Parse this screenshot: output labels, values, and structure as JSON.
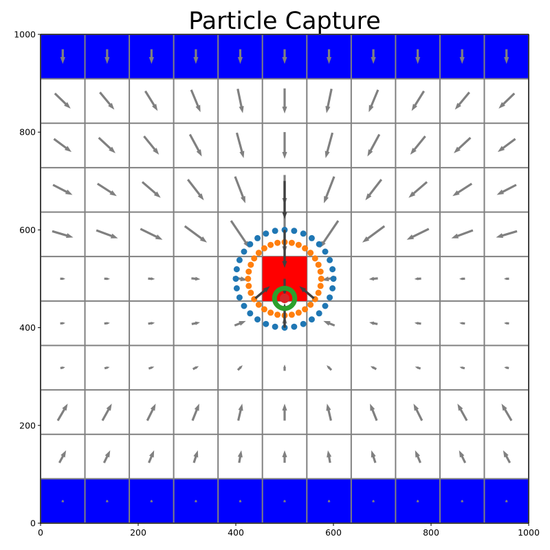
{
  "chart_data": {
    "type": "quiver",
    "title": "Particle Capture",
    "xlabel": "",
    "ylabel": "",
    "xlim": [
      0,
      1000
    ],
    "ylim": [
      0,
      1000
    ],
    "x_ticks": [
      0,
      200,
      400,
      600,
      800,
      1000
    ],
    "y_ticks": [
      0,
      200,
      400,
      600,
      800,
      1000
    ],
    "grid": {
      "x_edges": [
        0,
        90.9,
        181.8,
        272.7,
        363.6,
        454.5,
        545.5,
        636.4,
        727.3,
        818.2,
        909.1,
        1000
      ],
      "y_edges": [
        0,
        90.9,
        181.8,
        272.7,
        363.6,
        454.5,
        545.5,
        636.4,
        727.3,
        818.2,
        909.1,
        1000
      ],
      "line_color": "#808080"
    },
    "boundary_rows": [
      {
        "y0": 0,
        "y1": 90.9,
        "color": "#0000ff"
      },
      {
        "y0": 909.1,
        "y1": 1000,
        "color": "#0000ff"
      }
    ],
    "target_square": {
      "x0": 454.5,
      "x1": 545.5,
      "y0": 454.5,
      "y1": 545.5,
      "color": "#ff0000"
    },
    "capture_point": {
      "x": 500,
      "y": 460,
      "ring_radius": 25,
      "ring_color": "#2ca02c",
      "dot_color": "#d62728"
    },
    "outer_ring": {
      "cx": 500,
      "cy": 500,
      "r": 100,
      "n": 32,
      "color": "#1f77b4"
    },
    "inner_ring": {
      "cx": 500,
      "cy": 500,
      "r": 75,
      "n": 32,
      "color": "#ff7f0e"
    },
    "colors": {
      "arrow": "#808080",
      "dark_arrow": "#404040"
    },
    "dark_arrows": [
      {
        "x": 500,
        "y": 700,
        "u": 0,
        "v": -78
      },
      {
        "x": 500,
        "y": 600,
        "u": 0,
        "v": -78
      },
      {
        "x": 500,
        "y": 500,
        "u": 0,
        "v": -35
      },
      {
        "x": 500,
        "y": 400,
        "u": 0,
        "v": 50
      },
      {
        "x": 440,
        "y": 460,
        "u": 30,
        "v": 25
      },
      {
        "x": 560,
        "y": 460,
        "u": -30,
        "v": 25
      }
    ]
  }
}
